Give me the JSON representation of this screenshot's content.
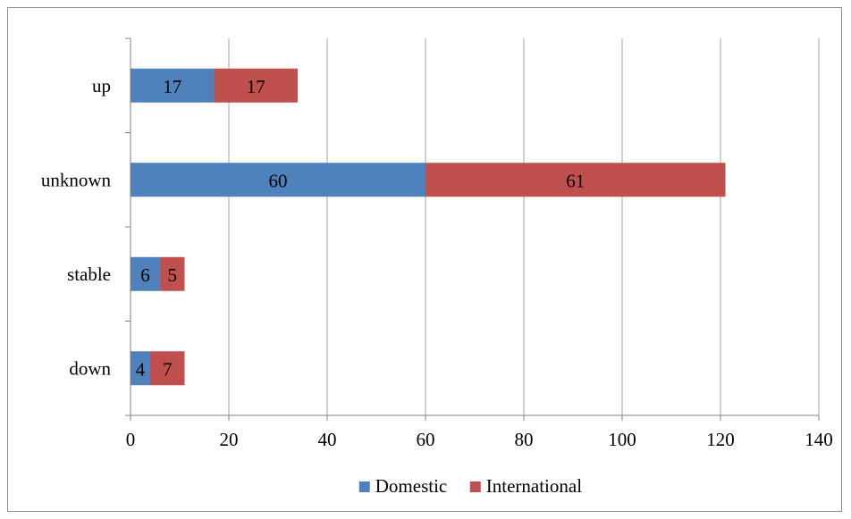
{
  "chart_data": {
    "type": "bar",
    "orientation": "horizontal",
    "stacked": true,
    "categories": [
      "up",
      "unknown",
      "stable",
      "down"
    ],
    "series": [
      {
        "name": "Domestic",
        "values": [
          17,
          60,
          6,
          4
        ],
        "color": "#4f81bd"
      },
      {
        "name": "International",
        "values": [
          17,
          61,
          5,
          7
        ],
        "color": "#c0504d"
      }
    ],
    "xlim": [
      0,
      140
    ],
    "xticks": [
      0,
      20,
      40,
      60,
      80,
      100,
      120,
      140
    ],
    "grid": "vertical",
    "legend": "bottom",
    "data_labels": true
  }
}
